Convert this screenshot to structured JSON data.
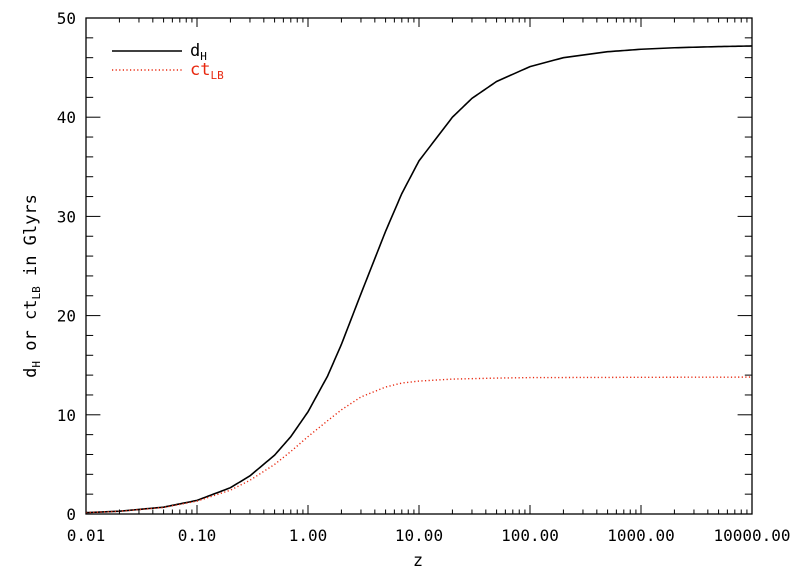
{
  "chart_data": {
    "type": "line",
    "xscale": "log",
    "xlim": [
      0.01,
      10000
    ],
    "ylim": [
      0,
      50
    ],
    "xlabel": "z",
    "ylabel": {
      "pre": "d",
      "sub1": "H",
      "mid": " or ct",
      "sub2": "LB",
      "post": " in Glyrs"
    },
    "x_ticks": [
      0.01,
      0.1,
      1,
      10,
      100,
      1000,
      10000
    ],
    "x_tick_labels": [
      "0.01",
      "0.10",
      "1.00",
      "10.00",
      "100.00",
      "1000.00",
      "10000.00"
    ],
    "y_ticks": [
      0,
      10,
      20,
      30,
      40,
      50
    ],
    "y_tick_labels": [
      "0",
      "10",
      "20",
      "30",
      "40",
      "50"
    ],
    "grid": false,
    "legend_position": "top-left",
    "series": [
      {
        "name": "d",
        "name_sub": "H",
        "style": "solid",
        "color": "#000000",
        "x": [
          0.01,
          0.02,
          0.05,
          0.1,
          0.2,
          0.3,
          0.5,
          0.7,
          1,
          1.5,
          2,
          3,
          5,
          7,
          10,
          20,
          30,
          50,
          100,
          200,
          500,
          1000,
          2000,
          5000,
          10000
        ],
        "y": [
          0.14,
          0.28,
          0.69,
          1.37,
          2.65,
          3.85,
          5.93,
          7.8,
          10.3,
          13.9,
          17.1,
          22.2,
          28.5,
          32.3,
          35.6,
          40.0,
          41.9,
          43.6,
          45.1,
          46.0,
          46.6,
          46.85,
          47.0,
          47.12,
          47.18
        ]
      },
      {
        "name": "ct",
        "name_sub": "LB",
        "style": "dotted",
        "color": "#e8280f",
        "x": [
          0.01,
          0.02,
          0.05,
          0.1,
          0.2,
          0.3,
          0.5,
          0.7,
          1,
          1.5,
          2,
          3,
          5,
          7,
          10,
          20,
          50,
          100,
          1000,
          10000
        ],
        "y": [
          0.14,
          0.27,
          0.66,
          1.3,
          2.4,
          3.4,
          5.0,
          6.3,
          7.8,
          9.4,
          10.5,
          11.8,
          12.8,
          13.2,
          13.4,
          13.6,
          13.7,
          13.75,
          13.78,
          13.8
        ]
      }
    ]
  }
}
